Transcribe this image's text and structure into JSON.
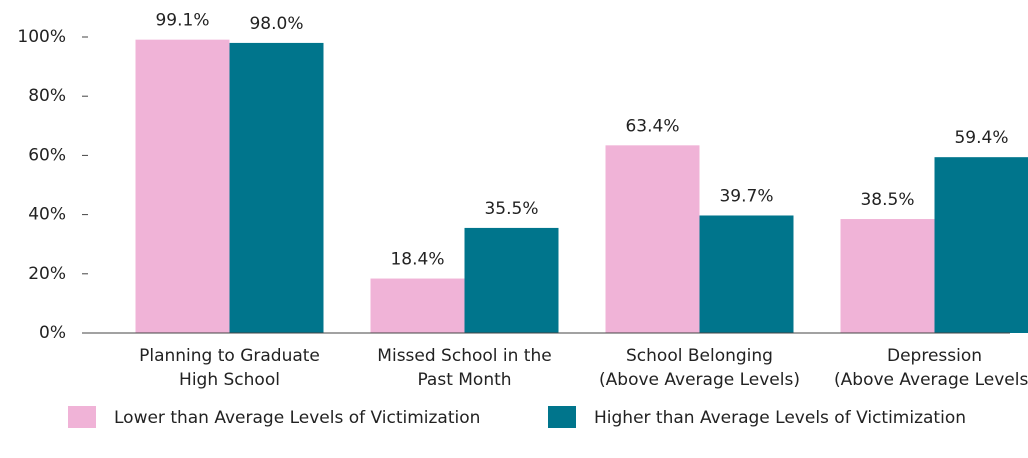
{
  "chart_data": {
    "type": "bar",
    "categories": [
      [
        "Planning to Graduate",
        "High School"
      ],
      [
        "Missed School in the",
        "Past Month"
      ],
      [
        "School Belonging",
        "(Above Average Levels)"
      ],
      [
        "Depression",
        "(Above Average Levels)"
      ]
    ],
    "series": [
      {
        "name": "Lower than Average Levels of Victimization",
        "color": "#f0b3d7",
        "values": [
          99.1,
          18.4,
          63.4,
          38.5
        ],
        "value_labels": [
          "99.1%",
          "18.4%",
          "63.4%",
          "38.5%"
        ]
      },
      {
        "name": "Higher than Average Levels of Victimization",
        "color": "#00758c",
        "values": [
          98.0,
          35.5,
          39.7,
          59.4
        ],
        "value_labels": [
          "98.0%",
          "35.5%",
          "39.7%",
          "59.4%"
        ]
      }
    ],
    "ylim": [
      0,
      100
    ],
    "yticks": [
      {
        "value": 0,
        "label": "0%"
      },
      {
        "value": 20,
        "label": "20%"
      },
      {
        "value": 40,
        "label": "40%"
      },
      {
        "value": 60,
        "label": "60%"
      },
      {
        "value": 80,
        "label": "80%"
      },
      {
        "value": 100,
        "label": "100%"
      }
    ],
    "legend": "bottom"
  }
}
